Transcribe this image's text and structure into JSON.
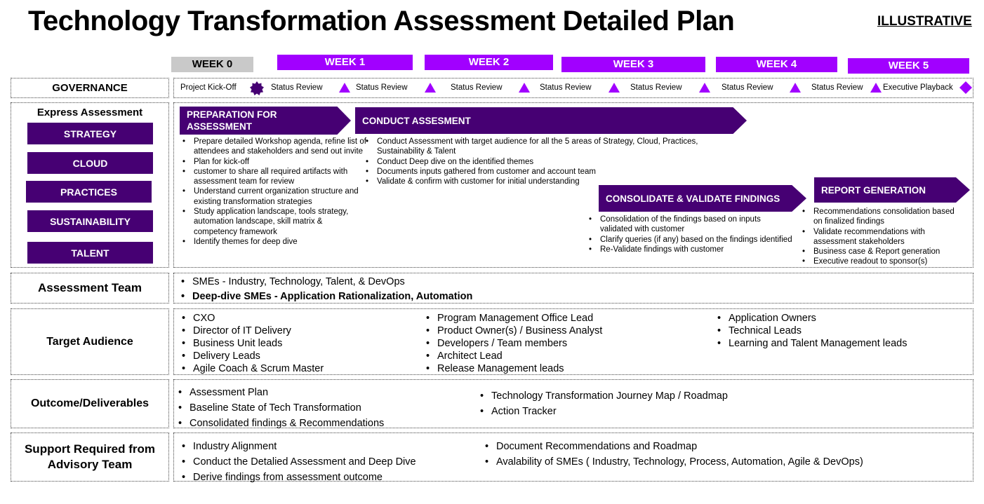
{
  "header": {
    "title": "Technology Transformation Assessment Detailed Plan",
    "tag": "ILLUSTRATIVE"
  },
  "weeks": [
    "WEEK 0",
    "WEEK 1",
    "WEEK 2",
    "WEEK 3",
    "WEEK 4",
    "WEEK 5"
  ],
  "governance": {
    "label": "GOVERNANCE",
    "items": [
      "Project Kick-Off",
      "Status Review",
      "Status Review",
      "Status Review",
      "Status Review",
      "Status Review",
      "Status Review",
      "Status Review",
      "Executive Playback"
    ]
  },
  "express": {
    "heading": "Express Assessment",
    "categories": [
      "STRATEGY",
      "CLOUD",
      "PRACTICES",
      "SUSTAINABILITY",
      "TALENT"
    ]
  },
  "phases": {
    "prep": {
      "title": "PREPARATION FOR ASSESSMENT",
      "bullets": [
        "Prepare detailed Workshop agenda, refine list of attendees and stakeholders and send out invite",
        "Plan for kick-off",
        "customer to share all required artifacts with assessment team for review",
        "Understand current organization structure and existing transformation strategies",
        "Study application landscape, tools strategy, automation landscape, skill matrix & competency framework",
        "Identify themes for deep dive"
      ]
    },
    "conduct": {
      "title": "CONDUCT ASSESMENT",
      "bullets": [
        "Conduct Assessment with target audience for all the 5 areas of Strategy, Cloud, Practices, Sustainability & Talent",
        "Conduct Deep dive on the identified themes",
        "Documents inputs gathered from customer and account team",
        "Validate & confirm with customer for initial understanding"
      ]
    },
    "consolidate": {
      "title": "CONSOLIDATE & VALIDATE FINDINGS",
      "bullets": [
        "Consolidation of the findings based on inputs validated with customer",
        "Clarify queries (if any) based on the findings identified",
        "Re-Validate findings with customer"
      ]
    },
    "report": {
      "title": "REPORT GENERATION",
      "bullets": [
        "Recommendations consolidation based on finalized findings",
        "Validate recommendations with assessment stakeholders",
        "Business case & Report generation",
        "Executive readout to sponsor(s)"
      ]
    }
  },
  "assessment_team": {
    "label": "Assessment Team",
    "items": [
      "SMEs - Industry, Technology, Talent, & DevOps",
      "Deep-dive SMEs - Application Rationalization, Automation"
    ]
  },
  "target_audience": {
    "label": "Target Audience",
    "col1": [
      "CXO",
      "Director of IT Delivery",
      "Business Unit leads",
      "Delivery Leads",
      "Agile Coach & Scrum Master"
    ],
    "col2": [
      "Program Management Office Lead",
      "Product Owner(s) / Business Analyst",
      "Developers / Team members",
      "Architect Lead",
      "Release Management leads"
    ],
    "col3": [
      "Application Owners",
      "Technical Leads",
      "Learning and Talent Management leads"
    ]
  },
  "outcome": {
    "label": "Outcome/Deliverables",
    "col1": [
      "Assessment Plan",
      "Baseline State of Tech Transformation",
      "Consolidated findings & Recommendations"
    ],
    "col2": [
      "Technology Transformation Journey Map / Roadmap",
      "Action Tracker"
    ]
  },
  "support": {
    "label": "Support Required from Advisory Team",
    "col1": [
      "Industry Alignment",
      "Conduct the Detalied Assessment and Deep Dive",
      "Derive findings from assessment outcome"
    ],
    "col2": [
      "Document Recommendations and Roadmap",
      "Avalability of SMEs ( Industry, Technology, Process, Automation, Agile & DevOps)"
    ]
  },
  "colors": {
    "purple": "#a100ff",
    "dark_purple": "#460073",
    "grey": "#c9c9c9"
  }
}
